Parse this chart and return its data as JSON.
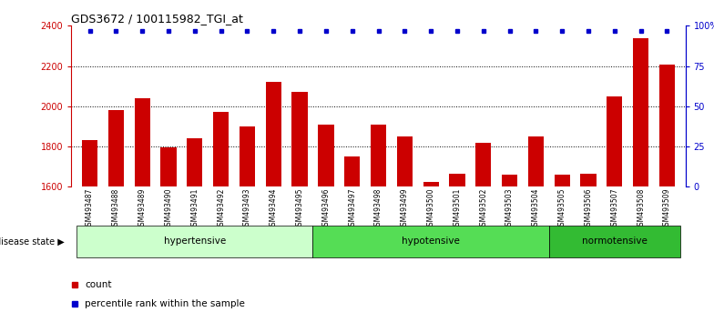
{
  "title": "GDS3672 / 100115982_TGI_at",
  "samples": [
    "GSM493487",
    "GSM493488",
    "GSM493489",
    "GSM493490",
    "GSM493491",
    "GSM493492",
    "GSM493493",
    "GSM493494",
    "GSM493495",
    "GSM493496",
    "GSM493497",
    "GSM493498",
    "GSM493499",
    "GSM493500",
    "GSM493501",
    "GSM493502",
    "GSM493503",
    "GSM493504",
    "GSM493505",
    "GSM493506",
    "GSM493507",
    "GSM493508",
    "GSM493509"
  ],
  "counts": [
    1830,
    1980,
    2040,
    1795,
    1840,
    1970,
    1900,
    2120,
    2070,
    1910,
    1750,
    1910,
    1850,
    1625,
    1665,
    1820,
    1660,
    1850,
    1660,
    1665,
    2050,
    2340,
    2205
  ],
  "percentile_ranks": [
    97,
    97,
    97,
    97,
    97,
    97,
    97,
    97,
    97,
    97,
    97,
    97,
    97,
    97,
    97,
    97,
    97,
    97,
    97,
    97,
    97,
    97,
    97
  ],
  "ylim_left": [
    1600,
    2400
  ],
  "ylim_right": [
    0,
    100
  ],
  "yticks_left": [
    1600,
    1800,
    2000,
    2200,
    2400
  ],
  "yticks_right": [
    0,
    25,
    50,
    75,
    100
  ],
  "bar_color": "#cc0000",
  "dot_color": "#0000cc",
  "bar_width": 0.6,
  "grid_lines": [
    1800,
    2000,
    2200
  ],
  "group_ranges": [
    [
      0,
      8
    ],
    [
      9,
      17
    ],
    [
      18,
      22
    ]
  ],
  "group_labels": [
    "hypertensive",
    "hypotensive",
    "normotensive"
  ],
  "group_colors": [
    "#ccffcc",
    "#55dd55",
    "#33bb33"
  ],
  "bg_color": "#ffffff"
}
